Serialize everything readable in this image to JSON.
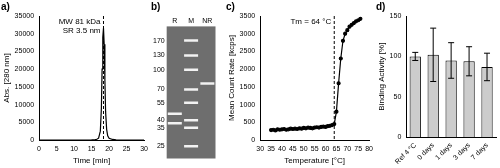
{
  "chart_data": [
    {
      "type": "line",
      "title": "a)",
      "x": [
        0,
        5,
        10,
        15,
        16,
        16.5,
        17,
        17.5,
        17.8,
        18.0,
        18.2,
        18.4,
        18.6,
        18.8,
        19.0,
        19.3,
        19.6,
        20,
        21,
        22,
        25,
        30
      ],
      "values": [
        0,
        0,
        0,
        50,
        100,
        200,
        500,
        2500,
        9000,
        20000,
        29000,
        31500,
        27000,
        17000,
        8000,
        3000,
        1200,
        500,
        150,
        50,
        0,
        0
      ],
      "color": "#000000",
      "marker": "none",
      "grid": false,
      "xlim": [
        0,
        30
      ],
      "xticks": [
        0,
        5,
        10,
        15,
        20,
        25,
        30
      ],
      "ylim": [
        0,
        35000
      ],
      "yticks": [
        0,
        5000,
        10000,
        15000,
        20000,
        25000,
        30000,
        35000
      ],
      "x_label": "Time [min]",
      "y_label": "Abs. [280 nm]",
      "annotations": [
        {
          "x": 18.4,
          "text": [
            "MW 81 kDa",
            "SR 3.5 nm"
          ]
        }
      ]
    },
    {
      "type": "gel",
      "title": "b)",
      "categories": [
        "R",
        "M",
        "NR"
      ],
      "values": [
        [
          45,
          38
        ],
        [
          170,
          130,
          100,
          70,
          55,
          40,
          35,
          25
        ],
        [
          78
        ]
      ],
      "color": "#f2f2f2",
      "log": "y",
      "grid": false,
      "ylim": [
        20,
        220
      ],
      "yticks": [
        25,
        35,
        40,
        55,
        70,
        100,
        130,
        170
      ]
    },
    {
      "type": "line",
      "title": "c)",
      "x": [
        35,
        36,
        37,
        38,
        39,
        40,
        41,
        42,
        43,
        44,
        45,
        46,
        47,
        48,
        49,
        50,
        51,
        52,
        53,
        54,
        55,
        56,
        57,
        58,
        59,
        60,
        61,
        62,
        63,
        64,
        65,
        66,
        67,
        68,
        69,
        70,
        71,
        72,
        73,
        74,
        75,
        76
      ],
      "values": [
        280,
        290,
        270,
        300,
        290,
        300,
        310,
        290,
        300,
        320,
        310,
        320,
        310,
        330,
        320,
        340,
        330,
        350,
        340,
        330,
        350,
        360,
        350,
        370,
        380,
        370,
        390,
        400,
        420,
        450,
        800,
        1600,
        2300,
        2800,
        3000,
        3100,
        3200,
        3250,
        3300,
        3350,
        3380,
        3420
      ],
      "color": "#000000",
      "marker": "circle",
      "grid": false,
      "xlim": [
        30,
        80
      ],
      "xticks": [
        30,
        35,
        40,
        45,
        50,
        55,
        60,
        65,
        70,
        75,
        80
      ],
      "ylim": [
        0,
        3500
      ],
      "yticks": [
        0,
        500,
        1000,
        1500,
        2000,
        2500,
        3000,
        3500
      ],
      "x_label": "Temperature [°C]",
      "y_label": "Mean Count Rate [kcps]",
      "annotations": [
        {
          "x": 64,
          "text": "Tm = 64 °C"
        }
      ]
    },
    {
      "type": "bar",
      "title": "d)",
      "categories": [
        "Ref 4 °C",
        "0 days",
        "1 days",
        "3 days",
        "7 days"
      ],
      "values": [
        100,
        102,
        95,
        94,
        87
      ],
      "errors": [
        5,
        33,
        22,
        18,
        17
      ],
      "color": "#cccccc",
      "grid": false,
      "ylim": [
        0,
        150
      ],
      "yticks": [
        0,
        50,
        100,
        150
      ],
      "y_label": "Binding Activity [%]"
    }
  ]
}
